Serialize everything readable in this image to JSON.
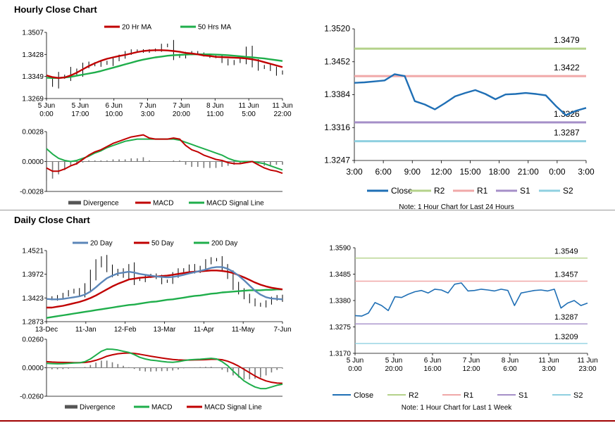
{
  "sections": {
    "hourly_title": "Hourly Close Chart",
    "daily_title": "Daily Close Chart"
  },
  "colors": {
    "red": "#c00000",
    "green": "#1fae4b",
    "blue": "#1f6fb5",
    "steel": "#5b86b8",
    "bar": "#7a7a7a",
    "r2": "#b4d28a",
    "r1": "#f0a8a8",
    "s1": "#a58fc8",
    "s2": "#8fd0e0"
  },
  "chart_data": [
    {
      "id": "hourly_price",
      "type": "line",
      "legend": [
        "20 Hr MA",
        "50 Hrs MA"
      ],
      "y_ticks": [
        "1.3507",
        "1.3428",
        "1.3349",
        "1.3269"
      ],
      "ylim": [
        1.3269,
        1.3507
      ],
      "x_ticks": [
        [
          "5 Jun",
          "0:00"
        ],
        [
          "5 Jun",
          "17:00"
        ],
        [
          "6 Jun",
          "10:00"
        ],
        [
          "7 Jun",
          "3:00"
        ],
        [
          "7 Jun",
          "20:00"
        ],
        [
          "8 Jun",
          "11:00"
        ],
        [
          "11 Jun",
          "5:00"
        ],
        [
          "11 Jun",
          "22:00"
        ]
      ],
      "close": [
        1.3335,
        1.332,
        1.335,
        1.3345,
        1.337,
        1.336,
        1.3385,
        1.3395,
        1.339,
        1.34,
        1.3395,
        1.341,
        1.342,
        1.3432,
        1.344,
        1.3442,
        1.3438,
        1.3442,
        1.3445,
        1.3458,
        1.3462,
        1.3425,
        1.342,
        1.343,
        1.3435,
        1.343,
        1.3425,
        1.342,
        1.3418,
        1.3405,
        1.3395,
        1.3402,
        1.3408,
        1.344,
        1.34,
        1.338,
        1.3385,
        1.3375,
        1.336,
        1.3365
      ],
      "ma20": [
        1.3352,
        1.3346,
        1.3343,
        1.3345,
        1.3352,
        1.3362,
        1.3374,
        1.3386,
        1.3396,
        1.3405,
        1.3412,
        1.3417,
        1.3422,
        1.3426,
        1.3431,
        1.3436,
        1.344,
        1.3442,
        1.3443,
        1.3443,
        1.3442,
        1.344,
        1.3437,
        1.3433,
        1.3431,
        1.3428,
        1.3424,
        1.3422,
        1.3419,
        1.3418,
        1.3417,
        1.3416,
        1.3415,
        1.3413,
        1.341,
        1.3406,
        1.34,
        1.3394,
        1.3388,
        1.3382
      ],
      "ma50": [
        1.3344,
        1.3343,
        1.3343,
        1.3345,
        1.3347,
        1.3351,
        1.3355,
        1.3359,
        1.3363,
        1.3368,
        1.3374,
        1.338,
        1.3386,
        1.3392,
        1.3398,
        1.3404,
        1.3409,
        1.3413,
        1.3417,
        1.342,
        1.3423,
        1.3425,
        1.3426,
        1.3427,
        1.3428,
        1.3428,
        1.3428,
        1.3428,
        1.3427,
        1.3426,
        1.3425,
        1.3423,
        1.3421,
        1.3419,
        1.3417,
        1.3415,
        1.3413,
        1.341,
        1.3407,
        1.3404
      ]
    },
    {
      "id": "hourly_macd",
      "type": "line",
      "legend": [
        "Divergence",
        "MACD",
        "MACD Signal Line"
      ],
      "y_ticks": [
        "0.0028",
        "0.0000",
        "-0.0028"
      ],
      "ylim": [
        -0.0028,
        0.0028
      ],
      "macd": [
        -0.0006,
        -0.0009,
        -0.0009,
        -0.0007,
        -0.0004,
        -0.0002,
        0.0002,
        0.0006,
        0.0009,
        0.0011,
        0.0014,
        0.0017,
        0.0019,
        0.0021,
        0.0023,
        0.0024,
        0.0025,
        0.0022,
        0.0021,
        0.0021,
        0.0021,
        0.0022,
        0.0021,
        0.0015,
        0.0011,
        0.0009,
        0.0006,
        0.0004,
        0.0002,
        0.0001,
        -0.0001,
        -0.0002,
        -0.0002,
        -0.0001,
        0.0,
        -0.0003,
        -0.0006,
        -0.0008,
        -0.0009,
        -0.0011
      ],
      "signal": [
        0.0012,
        0.0007,
        0.0003,
        0.0001,
        0.0,
        0.0001,
        0.0003,
        0.0005,
        0.0008,
        0.001,
        0.0013,
        0.0015,
        0.0017,
        0.0019,
        0.002,
        0.0021,
        0.0021,
        0.0021,
        0.0021,
        0.0021,
        0.0021,
        0.0021,
        0.002,
        0.0018,
        0.0016,
        0.0014,
        0.0012,
        0.001,
        0.0008,
        0.0006,
        0.0003,
        0.0001,
        0.0,
        0.0,
        0.0,
        -0.0001,
        -0.0002,
        -0.0004,
        -0.0006,
        -0.0008
      ],
      "divergence": [
        -0.0018,
        -0.0016,
        -0.0012,
        -0.0008,
        -0.0004,
        -0.0003,
        -0.0001,
        0.0001,
        0.0001,
        0.0001,
        0.0001,
        0.0002,
        0.0002,
        0.0002,
        0.0003,
        0.0003,
        0.0004,
        0.0001,
        0.0,
        0.0,
        0.0,
        0.0001,
        0.0001,
        -0.0003,
        -0.0005,
        -0.0005,
        -0.0006,
        -0.0006,
        -0.0006,
        -0.0005,
        -0.0004,
        -0.0003,
        -0.0002,
        -0.0001,
        0.0,
        -0.0002,
        -0.0004,
        -0.0004,
        -0.0003,
        -0.0003
      ]
    },
    {
      "id": "hourly_pivot",
      "type": "line",
      "title": "",
      "y_ticks": [
        "1.3520",
        "1.3452",
        "1.3384",
        "1.3316",
        "1.3247"
      ],
      "ylim": [
        1.3247,
        1.352
      ],
      "x_ticks": [
        "3:00",
        "6:00",
        "9:00",
        "12:00",
        "15:00",
        "18:00",
        "21:00",
        "0:00",
        "3:00"
      ],
      "close": [
        1.3408,
        1.3409,
        1.3411,
        1.3413,
        1.3426,
        1.3422,
        1.337,
        1.3363,
        1.3353,
        1.3366,
        1.338,
        1.3387,
        1.3393,
        1.3385,
        1.3374,
        1.3384,
        1.3385,
        1.3387,
        1.3385,
        1.3382,
        1.336,
        1.3341,
        1.335,
        1.3356
      ],
      "levels": [
        {
          "name": "R2",
          "value": 1.3479,
          "label": "1.3479"
        },
        {
          "name": "R1",
          "value": 1.3422,
          "label": "1.3422"
        },
        {
          "name": "S1",
          "value": 1.3326,
          "label": "1.3326"
        },
        {
          "name": "S2",
          "value": 1.3287,
          "label": "1.3287"
        }
      ],
      "legend": [
        "Close",
        "R2",
        "R1",
        "S1",
        "S2"
      ],
      "note": "Note: 1 Hour Chart for Last 24 Hours"
    },
    {
      "id": "daily_price",
      "type": "line",
      "legend": [
        "20 Day",
        "50 Day",
        "200 Day"
      ],
      "y_ticks": [
        "1.4521",
        "1.3972",
        "1.3423",
        "1.2873"
      ],
      "ylim": [
        1.2873,
        1.4521
      ],
      "x_ticks": [
        "13-Dec",
        "11-Jan",
        "12-Feb",
        "13-Mar",
        "11-Apr",
        "11-May",
        "7-Jun"
      ],
      "close": [
        1.343,
        1.34,
        1.345,
        1.35,
        1.356,
        1.36,
        1.352,
        1.368,
        1.395,
        1.42,
        1.432,
        1.412,
        1.398,
        1.405,
        1.395,
        1.412,
        1.385,
        1.384,
        1.392,
        1.395,
        1.39,
        1.38,
        1.382,
        1.395,
        1.405,
        1.408,
        1.415,
        1.405,
        1.412,
        1.425,
        1.432,
        1.43,
        1.412,
        1.395,
        1.372,
        1.358,
        1.346,
        1.336,
        1.328,
        1.325,
        1.332,
        1.34,
        1.345,
        1.338
      ],
      "ma20": [
        1.34,
        1.339,
        1.339,
        1.34,
        1.342,
        1.344,
        1.346,
        1.35,
        1.357,
        1.367,
        1.378,
        1.388,
        1.394,
        1.399,
        1.401,
        1.403,
        1.401,
        1.398,
        1.396,
        1.394,
        1.392,
        1.391,
        1.39,
        1.391,
        1.393,
        1.396,
        1.399,
        1.402,
        1.405,
        1.408,
        1.412,
        1.414,
        1.414,
        1.41,
        1.403,
        1.394,
        1.383,
        1.371,
        1.359,
        1.35,
        1.344,
        1.341,
        1.34,
        1.339
      ],
      "ma50": [
        1.32,
        1.32,
        1.322,
        1.324,
        1.327,
        1.33,
        1.333,
        1.337,
        1.342,
        1.348,
        1.355,
        1.362,
        1.369,
        1.375,
        1.38,
        1.385,
        1.387,
        1.389,
        1.39,
        1.391,
        1.392,
        1.393,
        1.394,
        1.396,
        1.398,
        1.4,
        1.402,
        1.403,
        1.404,
        1.405,
        1.406,
        1.406,
        1.405,
        1.403,
        1.4,
        1.395,
        1.39,
        1.384,
        1.378,
        1.373,
        1.369,
        1.366,
        1.364,
        1.362
      ],
      "ma200": [
        1.296,
        1.298,
        1.3,
        1.302,
        1.304,
        1.306,
        1.308,
        1.31,
        1.312,
        1.314,
        1.316,
        1.318,
        1.32,
        1.322,
        1.324,
        1.326,
        1.327,
        1.329,
        1.331,
        1.333,
        1.334,
        1.336,
        1.338,
        1.339,
        1.341,
        1.343,
        1.345,
        1.347,
        1.348,
        1.35,
        1.352,
        1.353,
        1.355,
        1.356,
        1.357,
        1.358,
        1.359,
        1.36,
        1.36,
        1.36,
        1.361,
        1.361,
        1.362,
        1.362
      ]
    },
    {
      "id": "daily_macd",
      "type": "line",
      "legend": [
        "Divergence",
        "MACD",
        "MACD Signal Line"
      ],
      "y_ticks": [
        "0.0260",
        "0.0000",
        "-0.0260"
      ],
      "ylim": [
        -0.026,
        0.026
      ],
      "macd": [
        0.004,
        0.0038,
        0.0036,
        0.0037,
        0.004,
        0.0043,
        0.0045,
        0.0055,
        0.008,
        0.0115,
        0.015,
        0.017,
        0.0168,
        0.0162,
        0.015,
        0.014,
        0.012,
        0.0095,
        0.008,
        0.007,
        0.0065,
        0.0058,
        0.0052,
        0.005,
        0.0055,
        0.0065,
        0.0072,
        0.0075,
        0.0078,
        0.0082,
        0.0086,
        0.008,
        0.0055,
        0.002,
        -0.003,
        -0.0075,
        -0.012,
        -0.015,
        -0.0175,
        -0.019,
        -0.019,
        -0.0175,
        -0.016,
        -0.015
      ],
      "signal": [
        0.0055,
        0.0052,
        0.005,
        0.0049,
        0.0048,
        0.0047,
        0.0046,
        0.0048,
        0.0055,
        0.0068,
        0.0085,
        0.0105,
        0.0118,
        0.0128,
        0.0132,
        0.0135,
        0.0131,
        0.0123,
        0.0114,
        0.0105,
        0.0097,
        0.0089,
        0.0082,
        0.0075,
        0.0071,
        0.007,
        0.007,
        0.0071,
        0.0072,
        0.0074,
        0.0077,
        0.0078,
        0.0073,
        0.006,
        0.004,
        0.0015,
        -0.0015,
        -0.0045,
        -0.0075,
        -0.01,
        -0.012,
        -0.0132,
        -0.014,
        -0.0142
      ],
      "divergence": [
        -0.0015,
        -0.0014,
        -0.0014,
        -0.0012,
        -0.0008,
        -0.0004,
        -0.0001,
        0.0007,
        0.0025,
        0.0047,
        0.0065,
        0.0065,
        0.005,
        0.0034,
        0.0018,
        0.0005,
        -0.0011,
        -0.0028,
        -0.0034,
        -0.0035,
        -0.0032,
        -0.0031,
        -0.003,
        -0.0025,
        -0.0016,
        -0.0005,
        0.0002,
        0.0004,
        0.0006,
        0.0008,
        0.0009,
        0.0002,
        -0.0018,
        -0.004,
        -0.007,
        -0.009,
        -0.0105,
        -0.0105,
        -0.01,
        -0.009,
        -0.007,
        -0.0043,
        -0.002,
        -0.0008
      ]
    },
    {
      "id": "daily_pivot",
      "type": "line",
      "y_ticks": [
        "1.3590",
        "1.3485",
        "1.3380",
        "1.3275",
        "1.3170"
      ],
      "ylim": [
        1.317,
        1.359
      ],
      "x_ticks": [
        [
          "5 Jun",
          "0:00"
        ],
        [
          "5 Jun",
          "20:00"
        ],
        [
          "6 Jun",
          "16:00"
        ],
        [
          "7 Jun",
          "12:00"
        ],
        [
          "8 Jun",
          "6:00"
        ],
        [
          "11 Jun",
          "3:00"
        ],
        [
          "11 Jun",
          "23:00"
        ]
      ],
      "close": [
        1.332,
        1.3318,
        1.333,
        1.3372,
        1.336,
        1.334,
        1.3395,
        1.3392,
        1.3405,
        1.3415,
        1.342,
        1.341,
        1.3425,
        1.3422,
        1.341,
        1.3445,
        1.345,
        1.3418,
        1.342,
        1.3425,
        1.3422,
        1.3418,
        1.3425,
        1.342,
        1.336,
        1.341,
        1.3415,
        1.342,
        1.3422,
        1.3418,
        1.3425,
        1.335,
        1.337,
        1.338,
        1.336,
        1.337
      ],
      "levels": [
        {
          "name": "R2",
          "value": 1.3549,
          "label": "1.3549"
        },
        {
          "name": "R1",
          "value": 1.3457,
          "label": "1.3457"
        },
        {
          "name": "S1",
          "value": 1.3287,
          "label": "1.3287"
        },
        {
          "name": "S2",
          "value": 1.3209,
          "label": "1.3209"
        }
      ],
      "legend": [
        "Close",
        "R2",
        "R1",
        "S1",
        "S2"
      ],
      "note": "Note: 1 Hour Chart for Last 1 Week"
    }
  ]
}
